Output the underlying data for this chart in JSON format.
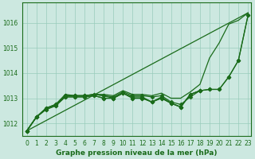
{
  "title": "Graphe pression niveau de la mer (hPa)",
  "bg_color": "#cce8e0",
  "grid_color": "#99ccbb",
  "line_color": "#1a6b1a",
  "x_ticks": [
    0,
    1,
    2,
    3,
    4,
    5,
    6,
    7,
    8,
    9,
    10,
    11,
    12,
    13,
    14,
    15,
    16,
    17,
    18,
    19,
    20,
    21,
    22,
    23
  ],
  "ylim": [
    1011.5,
    1016.8
  ],
  "y_ticks": [
    1012,
    1013,
    1014,
    1015,
    1016
  ],
  "figsize": [
    3.2,
    2.0
  ],
  "dpi": 100,
  "series_with_markers": [
    {
      "x": [
        0,
        1,
        2,
        3,
        4,
        5,
        6,
        7,
        8,
        9,
        10,
        11,
        12,
        13,
        14,
        15,
        16,
        17,
        18,
        19,
        20,
        21,
        22,
        23
      ],
      "y": [
        1011.7,
        1012.25,
        1012.6,
        1012.75,
        1013.1,
        1013.1,
        1013.1,
        1013.15,
        1013.1,
        1013.05,
        1013.25,
        1013.1,
        1013.1,
        1013.05,
        1013.1,
        1012.85,
        1012.75,
        1013.05,
        1013.3,
        1013.35,
        1013.35,
        1013.85,
        1014.5,
        1016.3
      ]
    },
    {
      "x": [
        0,
        1,
        2,
        3,
        4,
        5,
        6,
        7,
        8,
        9,
        10,
        11,
        12,
        13,
        14,
        15,
        16,
        17,
        18,
        19,
        20,
        21,
        22,
        23
      ],
      "y": [
        1011.7,
        1012.25,
        1012.6,
        1012.75,
        1013.1,
        1013.1,
        1013.1,
        1013.15,
        1013.1,
        1013.0,
        1013.2,
        1013.05,
        1013.05,
        1012.85,
        1013.05,
        1012.8,
        1012.65,
        1013.15,
        1013.3,
        1013.35,
        1013.35,
        1013.85,
        1014.5,
        1016.3
      ]
    },
    {
      "x": [
        0,
        1,
        2,
        3,
        4,
        5,
        6,
        7,
        8,
        9,
        10,
        11,
        12,
        13,
        14,
        15,
        16,
        17,
        18
      ],
      "y": [
        1011.7,
        1012.25,
        1012.55,
        1012.7,
        1013.05,
        1013.05,
        1013.05,
        1013.1,
        1013.0,
        1013.0,
        1013.2,
        1013.0,
        1013.0,
        1012.85,
        1013.0,
        1012.8,
        1012.65,
        1013.15,
        1013.3
      ]
    },
    {
      "x": [
        0,
        1,
        2,
        3,
        4,
        5,
        6,
        7,
        8,
        9,
        10,
        11,
        12,
        13,
        14,
        15,
        16,
        17,
        18
      ],
      "y": [
        1011.7,
        1012.25,
        1012.55,
        1012.7,
        1013.05,
        1013.05,
        1013.05,
        1013.1,
        1013.0,
        1013.0,
        1013.2,
        1013.0,
        1013.0,
        1012.85,
        1013.0,
        1012.8,
        1012.65,
        1013.15,
        1013.3
      ]
    }
  ],
  "series_no_markers": [
    {
      "x": [
        0,
        1,
        2,
        3,
        4,
        5,
        6,
        7,
        8,
        9,
        10,
        11,
        12,
        13,
        14,
        15,
        16,
        17,
        18,
        19,
        20,
        21,
        22,
        23
      ],
      "y": [
        1011.7,
        1012.25,
        1012.6,
        1012.75,
        1013.15,
        1013.1,
        1013.1,
        1013.15,
        1013.15,
        1013.1,
        1013.3,
        1013.15,
        1013.15,
        1013.1,
        1013.2,
        1013.0,
        1013.0,
        1013.25,
        1013.55,
        1014.6,
        1015.2,
        1015.95,
        1016.1,
        1016.4
      ]
    },
    {
      "x": [
        0,
        23
      ],
      "y": [
        1011.7,
        1016.4
      ]
    }
  ],
  "marker": "D",
  "marker_size": 2.5,
  "linewidth": 0.9
}
